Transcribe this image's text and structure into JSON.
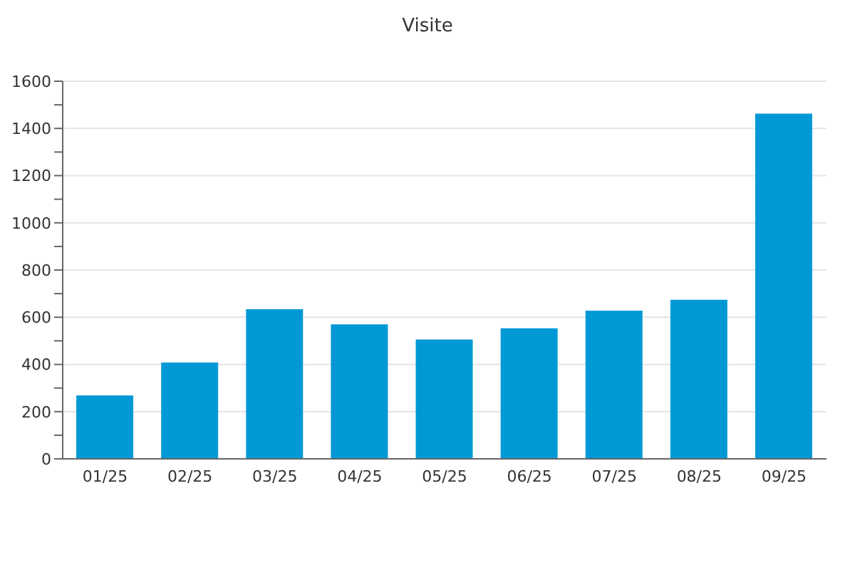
{
  "chart_data": {
    "type": "bar",
    "title": "Visite",
    "categories": [
      "01/25",
      "02/25",
      "03/25",
      "04/25",
      "05/25",
      "06/25",
      "07/25",
      "08/25",
      "09/25"
    ],
    "values": [
      269,
      408,
      634,
      570,
      506,
      553,
      628,
      674,
      1463
    ],
    "color": "#0099d6",
    "ylim": [
      0,
      1600
    ],
    "yticks": [
      0,
      {
        "value": 100,
        "label": null
      },
      200,
      {
        "value": 300,
        "label": null
      },
      400,
      {
        "value": 500,
        "label": null
      },
      600,
      {
        "value": 700,
        "label": null
      },
      800,
      {
        "value": 900,
        "label": null
      },
      1000,
      {
        "value": 1100,
        "label": null
      },
      1200,
      {
        "value": 1300,
        "label": null
      },
      1400,
      {
        "value": 1500,
        "label": null
      },
      1600
    ],
    "grid": "y",
    "legend": false
  }
}
